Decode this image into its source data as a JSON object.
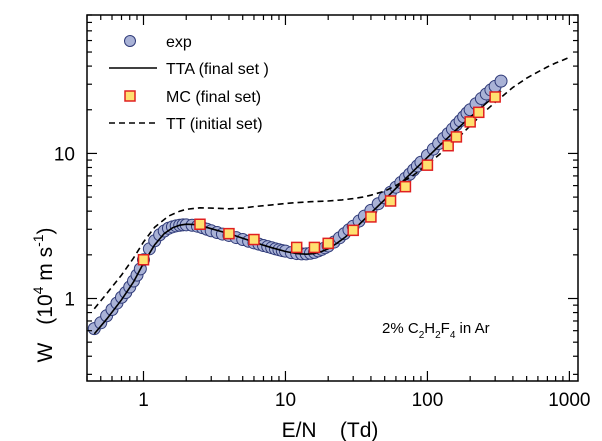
{
  "chart_data": {
    "type": "scatter",
    "xscale": "log",
    "yscale": "log",
    "xlim": [
      0.4,
      1150
    ],
    "ylim": [
      0.27,
      90
    ],
    "xticks": [
      1,
      10,
      100,
      1000
    ],
    "xtick_labels": [
      "1",
      "10",
      "100",
      "1000"
    ],
    "yticks": [
      1,
      10
    ],
    "ytick_labels": [
      "1",
      "10"
    ],
    "xlabel": "E/N    (Td)",
    "ylabel": {
      "main": "W",
      "unit_open": "(10",
      "unit_exp": "4",
      "unit_mid": " m s",
      "unit_exp2": "-1",
      "unit_close": ")"
    },
    "annotation": {
      "pre": "2% C",
      "sub1": "2",
      "mid1": "H",
      "sub2": "2",
      "mid2": "F",
      "sub3": "4",
      "post": " in Ar"
    },
    "legend_position": "top-left",
    "grid": false,
    "series": [
      {
        "name": "exp",
        "style": "circle",
        "color": "#a9b2d6",
        "edge": "#2f3a78",
        "x": [
          0.45,
          0.5,
          0.55,
          0.6,
          0.65,
          0.7,
          0.75,
          0.8,
          0.85,
          0.9,
          0.95,
          1.0,
          1.1,
          1.2,
          1.3,
          1.4,
          1.5,
          1.6,
          1.7,
          1.8,
          1.9,
          2.0,
          2.2,
          2.4,
          2.6,
          2.8,
          3.0,
          3.3,
          3.6,
          4.0,
          4.5,
          5.0,
          5.5,
          6.0,
          6.5,
          7.0,
          7.5,
          8.0,
          8.5,
          9.0,
          9.5,
          10,
          11,
          12,
          13,
          14,
          15,
          16,
          17,
          18,
          19,
          20,
          22,
          24,
          26,
          28,
          30,
          33,
          36,
          40,
          45,
          50,
          55,
          60,
          65,
          70,
          75,
          80,
          85,
          90,
          100,
          110,
          120,
          130,
          140,
          150,
          160,
          170,
          180,
          190,
          200,
          220,
          240,
          260,
          280,
          300,
          330
        ],
        "y": [
          0.62,
          0.68,
          0.76,
          0.84,
          0.93,
          1.02,
          1.1,
          1.2,
          1.32,
          1.45,
          1.6,
          1.85,
          2.2,
          2.5,
          2.75,
          2.92,
          3.05,
          3.12,
          3.17,
          3.2,
          3.22,
          3.22,
          3.2,
          3.15,
          3.08,
          3.0,
          2.93,
          2.85,
          2.78,
          2.72,
          2.63,
          2.55,
          2.48,
          2.42,
          2.37,
          2.32,
          2.28,
          2.24,
          2.2,
          2.17,
          2.14,
          2.12,
          2.07,
          2.04,
          2.03,
          2.03,
          2.05,
          2.08,
          2.13,
          2.18,
          2.24,
          2.3,
          2.45,
          2.62,
          2.8,
          2.98,
          3.15,
          3.42,
          3.7,
          4.05,
          4.5,
          4.95,
          5.4,
          5.85,
          6.3,
          6.75,
          7.2,
          7.7,
          8.2,
          8.7,
          9.7,
          10.7,
          11.7,
          12.7,
          13.7,
          14.7,
          15.8,
          16.8,
          17.9,
          19.0,
          20.0,
          22.0,
          23.9,
          25.7,
          27.4,
          29.0,
          31.5
        ]
      },
      {
        "name": "TTA (final set )",
        "style": "solid",
        "color": "#000000",
        "x": [
          0.45,
          0.55,
          0.7,
          0.85,
          1.0,
          1.2,
          1.4,
          1.6,
          1.8,
          2.0,
          2.3,
          2.6,
          3.0,
          3.5,
          4.0,
          5.0,
          6.0,
          7.0,
          8.0,
          9.0,
          10,
          12,
          14,
          16,
          18,
          20,
          23,
          26,
          30,
          35,
          40,
          45,
          50,
          60,
          70,
          80,
          90,
          100,
          120,
          140,
          160,
          180,
          200,
          230,
          260,
          300,
          330
        ],
        "y": [
          0.57,
          0.72,
          0.98,
          1.3,
          1.75,
          2.35,
          2.8,
          3.07,
          3.2,
          3.25,
          3.23,
          3.15,
          3.03,
          2.9,
          2.8,
          2.6,
          2.45,
          2.33,
          2.24,
          2.17,
          2.11,
          2.04,
          2.02,
          2.04,
          2.11,
          2.2,
          2.4,
          2.62,
          2.95,
          3.42,
          3.88,
          4.35,
          4.8,
          5.75,
          6.7,
          7.6,
          8.5,
          9.4,
          11.2,
          12.9,
          14.6,
          16.2,
          17.8,
          20.0,
          22.2,
          25.0,
          27.0
        ]
      },
      {
        "name": "MC (final set)",
        "style": "square",
        "color": "#ffe070",
        "edge": "#e02020",
        "x": [
          1.0,
          2.5,
          4.0,
          6.0,
          12.0,
          16.0,
          20.0,
          30.0,
          40.0,
          55.0,
          70.0,
          100,
          140,
          160,
          200,
          230,
          300
        ],
        "y": [
          1.85,
          3.25,
          2.8,
          2.55,
          2.25,
          2.25,
          2.4,
          2.95,
          3.65,
          4.7,
          5.9,
          8.3,
          11.3,
          13.0,
          16.5,
          19.2,
          24.5
        ]
      },
      {
        "name": "TT  (initial set)",
        "style": "dashed",
        "color": "#000000",
        "x": [
          0.45,
          0.55,
          0.7,
          0.85,
          1.0,
          1.2,
          1.5,
          1.8,
          2.0,
          2.5,
          3.0,
          4.0,
          5.0,
          6.0,
          8.0,
          10,
          12,
          15,
          20,
          25,
          30,
          35,
          40,
          50,
          60,
          70,
          80,
          100,
          130,
          160,
          200,
          250,
          300,
          400,
          500,
          600,
          700,
          800,
          900,
          1000
        ],
        "y": [
          0.85,
          1.08,
          1.45,
          1.9,
          2.45,
          3.1,
          3.7,
          4.0,
          4.12,
          4.22,
          4.2,
          4.15,
          4.2,
          4.3,
          4.42,
          4.52,
          4.58,
          4.65,
          4.7,
          4.78,
          4.88,
          5.0,
          5.15,
          5.5,
          6.0,
          6.55,
          7.1,
          8.4,
          10.4,
          12.5,
          15.5,
          19.2,
          22.5,
          28.5,
          33.0,
          36.5,
          39.5,
          42.0,
          44.0,
          46.0
        ]
      }
    ]
  }
}
